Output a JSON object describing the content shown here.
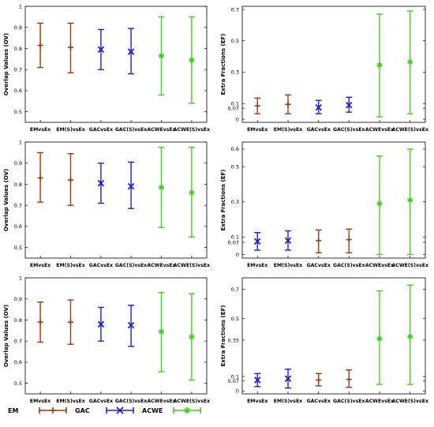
{
  "chart_data": [
    {
      "type": "errorbar",
      "ylabel": "Overlap Values (OV)",
      "categories": [
        "EMvsEx",
        "EM(S)vsEx",
        "GACvsEx",
        "GAC(S)vsEx",
        "ACWEvsEx",
        "ACWE(S)vsEx"
      ],
      "ylim": [
        0.45,
        1.0
      ],
      "yticks": [
        0.5,
        0.6,
        0.7,
        0.8,
        0.9,
        1
      ],
      "ytick_labels": [
        "0.5",
        "0.6",
        "0.7",
        "0.8",
        "0.9",
        "1"
      ],
      "series": [
        {
          "method": "EM",
          "categories": [
            0,
            1
          ],
          "mean": [
            0.815,
            0.805
          ],
          "low": [
            0.71,
            0.685
          ],
          "high": [
            0.92,
            0.92
          ]
        },
        {
          "method": "GAC",
          "categories": [
            2,
            3
          ],
          "mean": [
            0.795,
            0.785
          ],
          "low": [
            0.7,
            0.68
          ],
          "high": [
            0.89,
            0.895
          ]
        },
        {
          "method": "ACWE",
          "categories": [
            4,
            5
          ],
          "mean": [
            0.765,
            0.745
          ],
          "low": [
            0.58,
            0.54
          ],
          "high": [
            0.95,
            0.95
          ]
        }
      ]
    },
    {
      "type": "errorbar",
      "ylabel": "Extra Fractions (EF)",
      "categories": [
        "EMvsEx",
        "EM(S)vsEx",
        "GACvsEx",
        "GAC(S)vsEx",
        "ACWEvsEx",
        "ACWE(S)vsEx"
      ],
      "ylim": [
        -0.02,
        0.72
      ],
      "yticks": [
        0,
        0.07,
        0.1,
        0.3,
        0.5,
        0.7
      ],
      "ytick_labels": [
        "0",
        "0.07",
        "0.1",
        "0.3",
        "0.5",
        "0.7"
      ],
      "series": [
        {
          "method": "EM",
          "categories": [
            0,
            1
          ],
          "mean": [
            0.085,
            0.095
          ],
          "low": [
            0.035,
            0.035
          ],
          "high": [
            0.135,
            0.155
          ]
        },
        {
          "method": "GAC",
          "categories": [
            2,
            3
          ],
          "mean": [
            0.075,
            0.09
          ],
          "low": [
            0.035,
            0.045
          ],
          "high": [
            0.12,
            0.14
          ]
        },
        {
          "method": "ACWE",
          "categories": [
            4,
            5
          ],
          "mean": [
            0.345,
            0.365
          ],
          "low": [
            0.015,
            0.035
          ],
          "high": [
            0.67,
            0.69
          ]
        }
      ]
    },
    {
      "type": "errorbar",
      "ylabel": "Overlap Values (OV)",
      "categories": [
        "EMvsEx",
        "EM(S)vsEx",
        "GACvsEx",
        "GAC(S)vsEx",
        "ACWEvsEx",
        "ACWE(S)vsEx"
      ],
      "ylim": [
        0.45,
        1.0
      ],
      "yticks": [
        0.5,
        0.6,
        0.7,
        0.8,
        0.9,
        1
      ],
      "ytick_labels": [
        "0.5",
        "0.6",
        "0.7",
        "0.8",
        "0.9",
        "1"
      ],
      "series": [
        {
          "method": "EM",
          "categories": [
            0,
            1
          ],
          "mean": [
            0.83,
            0.82
          ],
          "low": [
            0.715,
            0.7
          ],
          "high": [
            0.95,
            0.945
          ]
        },
        {
          "method": "GAC",
          "categories": [
            2,
            3
          ],
          "mean": [
            0.805,
            0.79
          ],
          "low": [
            0.71,
            0.685
          ],
          "high": [
            0.9,
            0.905
          ]
        },
        {
          "method": "ACWE",
          "categories": [
            4,
            5
          ],
          "mean": [
            0.785,
            0.76
          ],
          "low": [
            0.595,
            0.55
          ],
          "high": [
            0.975,
            0.975
          ]
        }
      ]
    },
    {
      "type": "errorbar",
      "ylabel": "Extra Fractions (EF)",
      "categories": [
        "EMvsEx",
        "EM(S)vsEx",
        "GACvsEx",
        "GAC(S)vsEx",
        "ACWEvsEx",
        "ACWE(S)vsEx"
      ],
      "ylim": [
        -0.02,
        0.64
      ],
      "yticks": [
        0,
        0.07,
        0.1,
        0.3,
        0.5,
        0.6
      ],
      "ytick_labels": [
        "0",
        "0.07",
        "0.1",
        "0.3",
        "0.5",
        "0.6"
      ],
      "series": [
        {
          "method": "GAC",
          "categories": [
            0,
            1
          ],
          "mean": [
            0.075,
            0.08
          ],
          "low": [
            0.025,
            0.025
          ],
          "high": [
            0.125,
            0.135
          ]
        },
        {
          "method": "EM",
          "categories": [
            2,
            3
          ],
          "mean": [
            0.08,
            0.085
          ],
          "low": [
            0.01,
            0.01
          ],
          "high": [
            0.14,
            0.145
          ]
        },
        {
          "method": "ACWE",
          "categories": [
            4,
            5
          ],
          "mean": [
            0.29,
            0.31
          ],
          "low": [
            0.0,
            0.0
          ],
          "high": [
            0.56,
            0.6
          ]
        }
      ]
    },
    {
      "type": "errorbar",
      "ylabel": "Overlap Values (OV)",
      "categories": [
        "EMvsEx",
        "EM(S)vsEx",
        "GACvsEx",
        "GAC(S)vsEx",
        "ACWEvsEx",
        "ACWE(S)vsEx"
      ],
      "ylim": [
        0.45,
        1.0
      ],
      "yticks": [
        0.5,
        0.6,
        0.7,
        0.8,
        0.9,
        1
      ],
      "ytick_labels": [
        "0.5",
        "0.6",
        "0.7",
        "0.8",
        "0.9",
        "1"
      ],
      "series": [
        {
          "method": "EM",
          "categories": [
            0,
            1
          ],
          "mean": [
            0.79,
            0.79
          ],
          "low": [
            0.695,
            0.685
          ],
          "high": [
            0.885,
            0.895
          ]
        },
        {
          "method": "GAC",
          "categories": [
            2,
            3
          ],
          "mean": [
            0.78,
            0.775
          ],
          "low": [
            0.7,
            0.675
          ],
          "high": [
            0.86,
            0.87
          ]
        },
        {
          "method": "ACWE",
          "categories": [
            4,
            5
          ],
          "mean": [
            0.745,
            0.72
          ],
          "low": [
            0.555,
            0.515
          ],
          "high": [
            0.93,
            0.925
          ]
        }
      ]
    },
    {
      "type": "errorbar",
      "ylabel": "Extra Fractions (EF)",
      "categories": [
        "EMvsEx",
        "EM(S)vsEx",
        "GACvsEx",
        "GAC(S)vsEx",
        "ACWEvsEx",
        "ACWE(S)vsEx"
      ],
      "ylim": [
        -0.02,
        0.78
      ],
      "yticks": [
        0,
        0.07,
        0.1,
        0.35,
        0.5,
        0.7
      ],
      "ytick_labels": [
        "0",
        "0.07",
        "0.1",
        "0.35",
        "0.5",
        "0.7"
      ],
      "series": [
        {
          "method": "GAC",
          "categories": [
            0,
            1
          ],
          "mean": [
            0.075,
            0.085
          ],
          "low": [
            0.03,
            0.02
          ],
          "high": [
            0.12,
            0.15
          ]
        },
        {
          "method": "EM",
          "categories": [
            2,
            3
          ],
          "mean": [
            0.075,
            0.08
          ],
          "low": [
            0.035,
            0.025
          ],
          "high": [
            0.12,
            0.145
          ]
        },
        {
          "method": "ACWE",
          "categories": [
            4,
            5
          ],
          "mean": [
            0.36,
            0.375
          ],
          "low": [
            0.045,
            0.045
          ],
          "high": [
            0.69,
            0.73
          ]
        }
      ]
    }
  ],
  "legend": [
    {
      "label": "EM",
      "marker": "plus",
      "color": "#9b3b10"
    },
    {
      "label": "GAC",
      "marker": "x",
      "color": "#1f1fd0"
    },
    {
      "label": "ACWE",
      "marker": "star",
      "color": "#44cc22"
    }
  ],
  "colors": {
    "EM": "#9b3b10",
    "GAC": "#1f1fd0",
    "ACWE": "#44cc22"
  }
}
